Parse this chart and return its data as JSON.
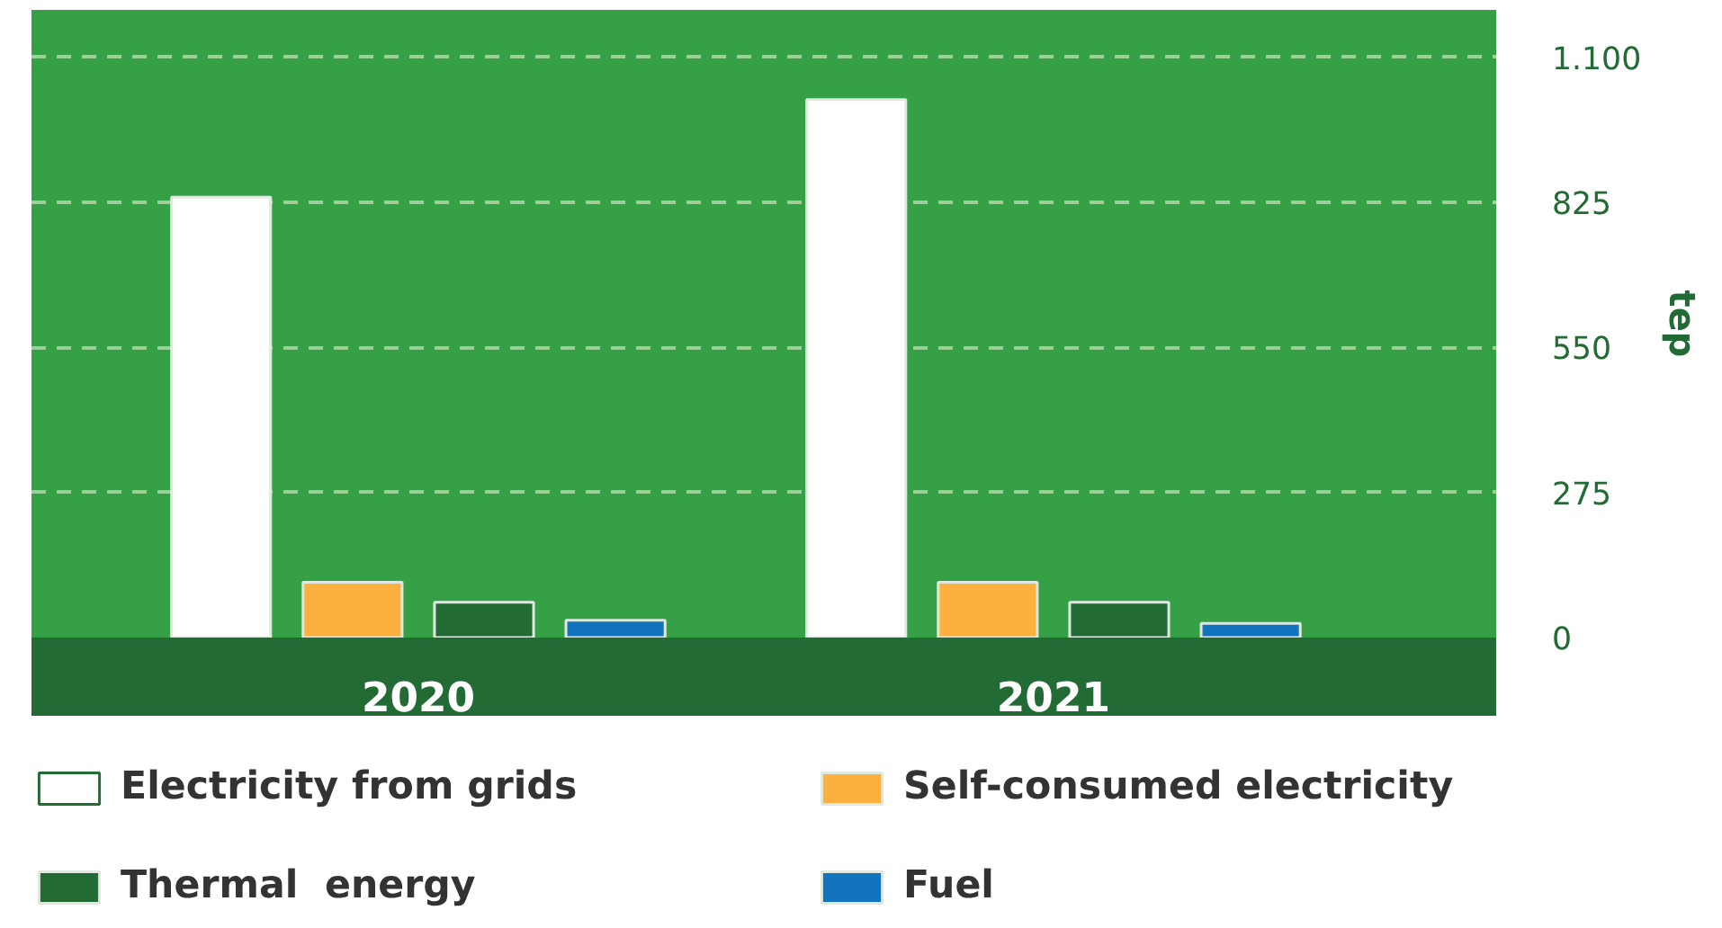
{
  "chart_data": {
    "type": "bar",
    "ylabel": "tep",
    "categories": [
      "2020",
      "2021"
    ],
    "series": [
      {
        "name": "Electricity from grids",
        "color": "#ffffff",
        "values": [
          835,
          1020
        ]
      },
      {
        "name": "Self-consumed electricity",
        "color": "#fbb040",
        "values": [
          105,
          105
        ]
      },
      {
        "name": "Thermal  energy",
        "color": "#236b35",
        "values": [
          67,
          67
        ]
      },
      {
        "name": "Fuel",
        "color": "#1273bf",
        "values": [
          33,
          27
        ]
      }
    ],
    "ylim": [
      0,
      1190
    ],
    "yticks": [
      0,
      275,
      550,
      825,
      {
        "value": 1100,
        "label": "1.100"
      }
    ],
    "grid": "y",
    "legend": "bottom"
  }
}
